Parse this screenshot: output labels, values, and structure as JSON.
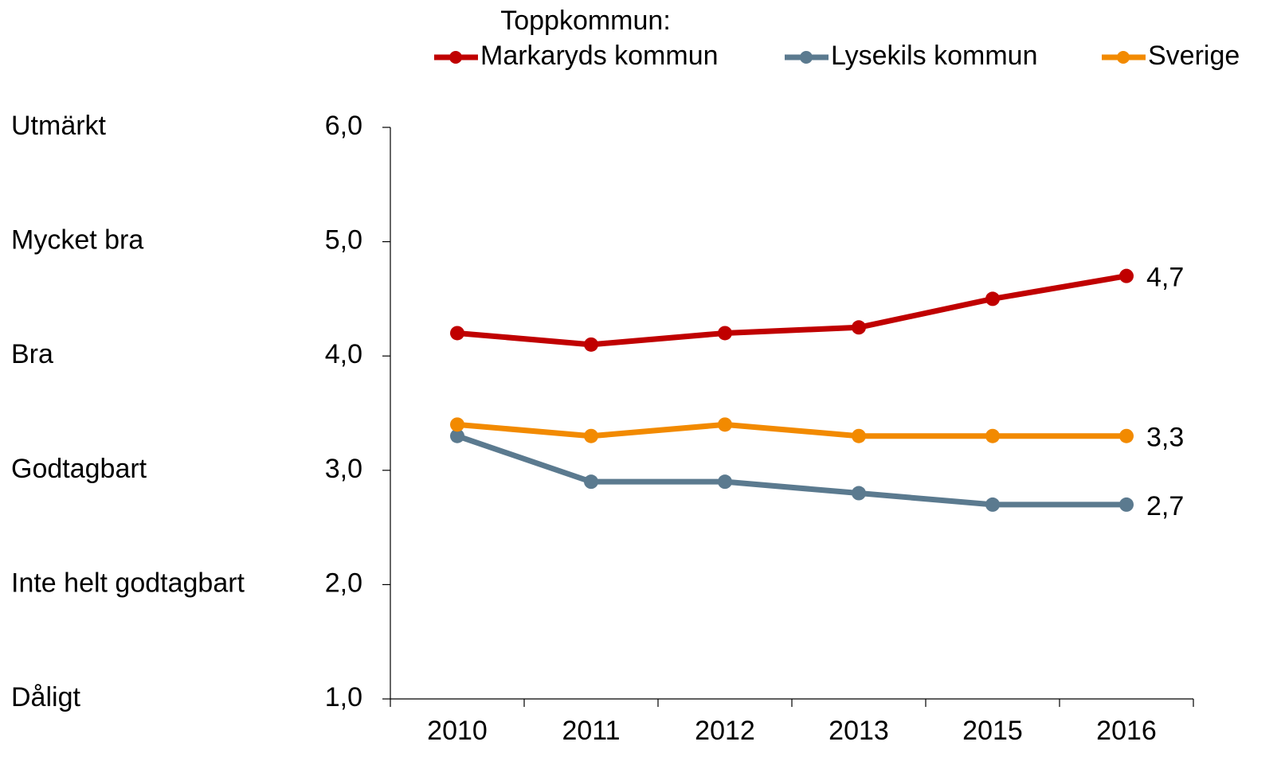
{
  "chart_data": {
    "type": "line",
    "legend_title": "Toppkommun:",
    "legend": "top",
    "categories": [
      "2010",
      "2011",
      "2012",
      "2013",
      "2015",
      "2016"
    ],
    "series": [
      {
        "name": "Markaryds kommun",
        "color": "#c00000",
        "values": [
          4.2,
          4.1,
          4.2,
          4.25,
          4.5,
          4.7
        ],
        "value_labels": [
          null,
          null,
          null,
          null,
          null,
          "4,7"
        ]
      },
      {
        "name": "Lysekils kommun",
        "color": "#5b7a8f",
        "values": [
          3.3,
          2.9,
          2.9,
          2.8,
          2.7,
          2.7
        ],
        "value_labels": [
          null,
          null,
          null,
          null,
          null,
          "2,7"
        ]
      },
      {
        "name": "Sverige",
        "color": "#f28a00",
        "values": [
          3.4,
          3.3,
          3.4,
          3.3,
          3.3,
          3.3
        ],
        "value_labels": [
          null,
          null,
          null,
          null,
          null,
          "3,3"
        ]
      }
    ],
    "ylim": [
      1,
      6
    ],
    "yticks": [
      {
        "value": 1,
        "label": "1,0"
      },
      {
        "value": 2,
        "label": "2,0"
      },
      {
        "value": 3,
        "label": "3,0"
      },
      {
        "value": 4,
        "label": "4,0"
      },
      {
        "value": 5,
        "label": "5,0"
      },
      {
        "value": 6,
        "label": "6,0"
      }
    ],
    "ytick_descriptions": [
      "Dåligt",
      "Inte helt godtagbart",
      "Godtagbart",
      "Bra",
      "Mycket bra",
      "Utmärkt"
    ],
    "grid": false
  }
}
